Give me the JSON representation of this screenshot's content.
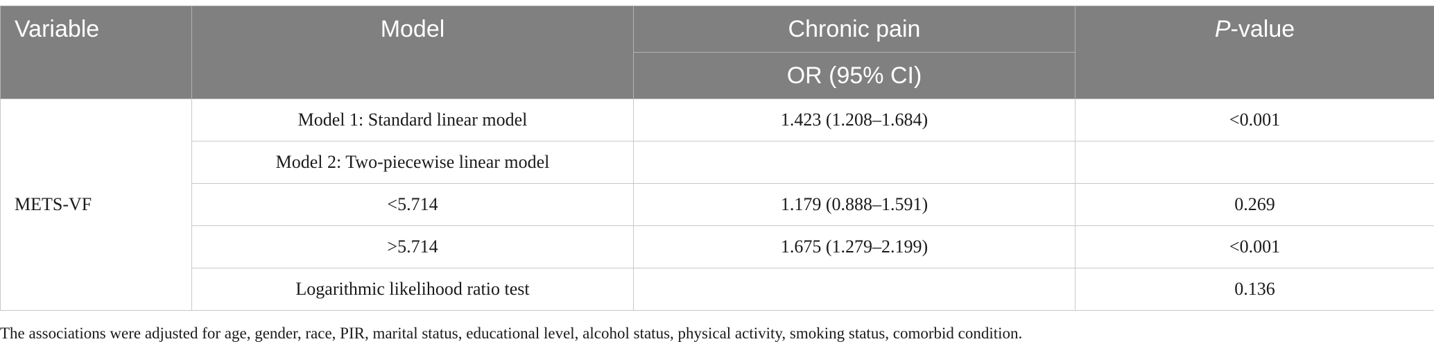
{
  "table": {
    "headers": {
      "variable": "Variable",
      "model": "Model",
      "outcome": "Chronic pain",
      "outcome_sub": "OR (95% CI)",
      "pvalue_italic": "P",
      "pvalue_rest": "-value"
    },
    "variable_label": "METS-VF",
    "rows": [
      {
        "model": "Model 1: Standard linear model",
        "or": "1.423 (1.208–1.684)",
        "p": "<0.001"
      },
      {
        "model": "Model 2: Two-piecewise linear model",
        "or": "",
        "p": ""
      },
      {
        "model": "<5.714",
        "or": "1.179 (0.888–1.591)",
        "p": "0.269"
      },
      {
        "model": ">5.714",
        "or": "1.675 (1.279–2.199)",
        "p": "<0.001"
      },
      {
        "model": "Logarithmic likelihood ratio test",
        "or": "",
        "p": "0.136"
      }
    ]
  },
  "footnote": "The associations were adjusted for age, gender, race, PIR, marital status, educational level, alcohol status, physical activity, smoking status, comorbid condition.",
  "colors": {
    "header_bg": "#808080",
    "header_text": "#ffffff",
    "grid": "#c8c8c8"
  }
}
